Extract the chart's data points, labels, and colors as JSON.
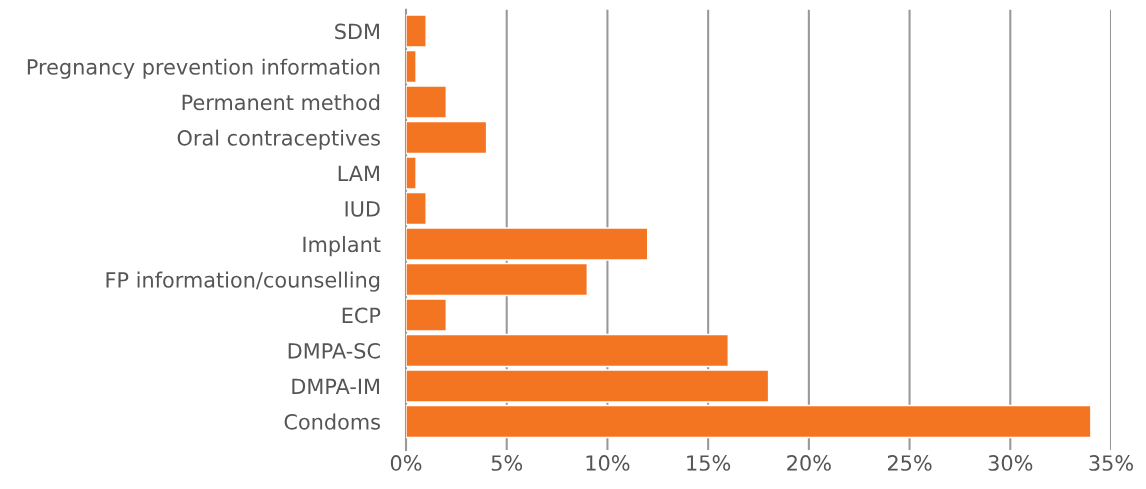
{
  "chart_data": {
    "type": "bar",
    "orientation": "horizontal",
    "categories": [
      "SDM",
      "Pregnancy prevention information",
      "Permanent method",
      "Oral contraceptives",
      "LAM",
      "IUD",
      "Implant",
      "FP information/counselling",
      "ECP",
      "DMPA-SC",
      "DMPA-IM",
      "Condoms"
    ],
    "values": [
      1.0,
      0.5,
      2.0,
      4.0,
      0.5,
      1.0,
      12.0,
      9.0,
      2.0,
      16.0,
      18.0,
      34.0
    ],
    "color": "#f47521",
    "xlim": [
      0,
      35
    ],
    "xticks": [
      {
        "value": 0,
        "label": "0%"
      },
      {
        "value": 5,
        "label": "5%"
      },
      {
        "value": 10,
        "label": "10%"
      },
      {
        "value": 15,
        "label": "15%"
      },
      {
        "value": 20,
        "label": "20%"
      },
      {
        "value": 25,
        "label": "25%"
      },
      {
        "value": 30,
        "label": "30%"
      },
      {
        "value": 35,
        "label": "35%"
      }
    ],
    "grid": "x"
  }
}
